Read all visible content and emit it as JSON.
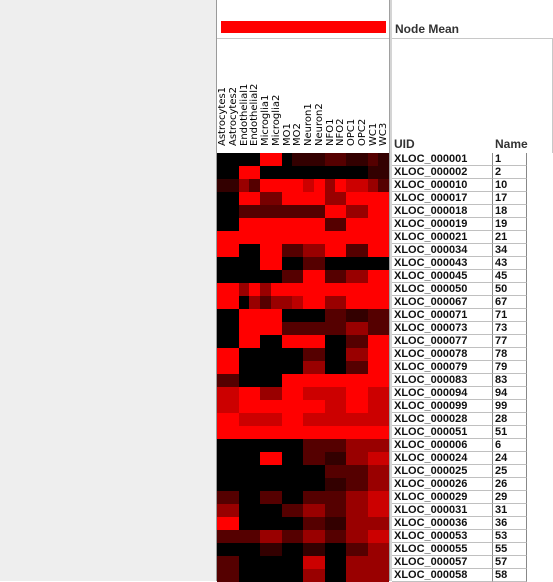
{
  "header": {
    "node_mean_label": "Node Mean",
    "uid_header": "UID",
    "name_header": "Name",
    "mean_bar_color": "#ff0000"
  },
  "columns": [
    "Astrocytes1",
    "Astrocytes2",
    "Endothelial1",
    "Endothelial2",
    "Microglia1",
    "Microglia2",
    "MO1",
    "MO2",
    "Neuron1",
    "Neuron2",
    "NFO1",
    "NFO2",
    "OPC1",
    "OPC2",
    "WC1",
    "WC3"
  ],
  "rows": [
    {
      "uid": "XLOC_000001",
      "name": "1"
    },
    {
      "uid": "XLOC_000002",
      "name": "2"
    },
    {
      "uid": "XLOC_000010",
      "name": "10"
    },
    {
      "uid": "XLOC_000017",
      "name": "17"
    },
    {
      "uid": "XLOC_000018",
      "name": "18"
    },
    {
      "uid": "XLOC_000019",
      "name": "19"
    },
    {
      "uid": "XLOC_000021",
      "name": "21"
    },
    {
      "uid": "XLOC_000034",
      "name": "34"
    },
    {
      "uid": "XLOC_000043",
      "name": "43"
    },
    {
      "uid": "XLOC_000045",
      "name": "45"
    },
    {
      "uid": "XLOC_000050",
      "name": "50"
    },
    {
      "uid": "XLOC_000067",
      "name": "67"
    },
    {
      "uid": "XLOC_000071",
      "name": "71"
    },
    {
      "uid": "XLOC_000073",
      "name": "73"
    },
    {
      "uid": "XLOC_000077",
      "name": "77"
    },
    {
      "uid": "XLOC_000078",
      "name": "78"
    },
    {
      "uid": "XLOC_000079",
      "name": "79"
    },
    {
      "uid": "XLOC_000083",
      "name": "83"
    },
    {
      "uid": "XLOC_000094",
      "name": "94"
    },
    {
      "uid": "XLOC_000099",
      "name": "99"
    },
    {
      "uid": "XLOC_000028",
      "name": "28"
    },
    {
      "uid": "XLOC_000051",
      "name": "51"
    },
    {
      "uid": "XLOC_000006",
      "name": "6"
    },
    {
      "uid": "XLOC_000024",
      "name": "24"
    },
    {
      "uid": "XLOC_000025",
      "name": "25"
    },
    {
      "uid": "XLOC_000026",
      "name": "26"
    },
    {
      "uid": "XLOC_000029",
      "name": "29"
    },
    {
      "uid": "XLOC_000031",
      "name": "31"
    },
    {
      "uid": "XLOC_000036",
      "name": "36"
    },
    {
      "uid": "XLOC_000053",
      "name": "53"
    },
    {
      "uid": "XLOC_000055",
      "name": "55"
    },
    {
      "uid": "XLOC_000057",
      "name": "57"
    },
    {
      "uid": "XLOC_000058",
      "name": "58"
    }
  ],
  "heatmap_levels": [
    [
      0,
      0,
      0,
      0,
      9,
      9,
      0,
      1,
      1,
      1,
      2,
      2,
      1,
      1,
      2,
      1
    ],
    [
      0,
      0,
      9,
      9,
      0,
      0,
      0,
      0,
      0,
      0,
      0,
      0,
      0,
      0,
      1,
      1
    ],
    [
      1,
      1,
      4,
      2,
      9,
      9,
      9,
      9,
      6,
      9,
      4,
      9,
      6,
      6,
      4,
      2
    ],
    [
      0,
      0,
      9,
      9,
      3,
      3,
      9,
      9,
      9,
      9,
      4,
      4,
      9,
      9,
      9,
      9
    ],
    [
      0,
      0,
      2,
      2,
      2,
      2,
      2,
      2,
      2,
      2,
      9,
      9,
      4,
      4,
      9,
      9
    ],
    [
      0,
      0,
      9,
      9,
      9,
      9,
      9,
      9,
      9,
      9,
      2,
      2,
      9,
      9,
      9,
      9
    ],
    [
      9,
      9,
      9,
      9,
      9,
      9,
      9,
      9,
      9,
      9,
      9,
      9,
      9,
      9,
      9,
      9
    ],
    [
      9,
      9,
      0,
      0,
      9,
      9,
      2,
      2,
      4,
      4,
      9,
      9,
      2,
      2,
      9,
      9
    ],
    [
      0,
      0,
      0,
      0,
      9,
      9,
      0,
      0,
      2,
      2,
      0,
      0,
      0,
      0,
      0,
      0
    ],
    [
      0,
      0,
      0,
      0,
      0,
      0,
      2,
      2,
      9,
      9,
      2,
      2,
      4,
      4,
      9,
      9
    ],
    [
      9,
      9,
      4,
      9,
      4,
      9,
      9,
      9,
      9,
      9,
      9,
      9,
      9,
      9,
      9,
      9
    ],
    [
      9,
      9,
      0,
      4,
      2,
      4,
      4,
      5,
      9,
      9,
      4,
      4,
      9,
      9,
      9,
      9
    ],
    [
      0,
      0,
      9,
      9,
      9,
      9,
      0,
      0,
      0,
      0,
      2,
      2,
      1,
      1,
      2,
      2
    ],
    [
      0,
      0,
      9,
      9,
      9,
      9,
      2,
      2,
      2,
      2,
      2,
      2,
      4,
      4,
      2,
      2
    ],
    [
      0,
      0,
      9,
      9,
      0,
      0,
      9,
      9,
      9,
      9,
      0,
      0,
      2,
      2,
      9,
      9
    ],
    [
      9,
      9,
      0,
      0,
      0,
      0,
      0,
      0,
      2,
      2,
      0,
      0,
      4,
      4,
      9,
      9
    ],
    [
      9,
      9,
      0,
      0,
      0,
      0,
      0,
      0,
      4,
      4,
      0,
      0,
      2,
      2,
      9,
      9
    ],
    [
      2,
      2,
      0,
      0,
      0,
      0,
      9,
      9,
      9,
      9,
      9,
      9,
      9,
      9,
      9,
      9
    ],
    [
      6,
      6,
      9,
      9,
      4,
      4,
      9,
      9,
      6,
      6,
      6,
      6,
      9,
      9,
      6,
      6
    ],
    [
      6,
      6,
      9,
      9,
      9,
      9,
      9,
      9,
      9,
      9,
      6,
      6,
      9,
      9,
      6,
      6
    ],
    [
      9,
      9,
      6,
      6,
      6,
      6,
      9,
      9,
      6,
      6,
      6,
      6,
      6,
      6,
      6,
      6
    ],
    [
      9,
      9,
      9,
      9,
      9,
      9,
      9,
      9,
      9,
      9,
      9,
      9,
      9,
      9,
      9,
      9
    ],
    [
      0,
      0,
      0,
      0,
      0,
      0,
      0,
      0,
      2,
      2,
      2,
      2,
      4,
      4,
      4,
      4
    ],
    [
      0,
      0,
      0,
      0,
      9,
      9,
      0,
      0,
      2,
      2,
      1,
      1,
      4,
      4,
      6,
      6
    ],
    [
      0,
      0,
      0,
      0,
      0,
      0,
      0,
      0,
      0,
      0,
      2,
      2,
      2,
      2,
      4,
      4
    ],
    [
      0,
      0,
      0,
      0,
      0,
      0,
      0,
      0,
      0,
      0,
      1,
      1,
      2,
      2,
      4,
      4
    ],
    [
      2,
      2,
      0,
      0,
      2,
      2,
      0,
      0,
      2,
      2,
      2,
      2,
      4,
      4,
      6,
      6
    ],
    [
      4,
      4,
      0,
      0,
      0,
      0,
      2,
      2,
      4,
      4,
      2,
      2,
      4,
      4,
      6,
      6
    ],
    [
      9,
      9,
      0,
      0,
      0,
      0,
      0,
      0,
      2,
      2,
      1,
      1,
      4,
      4,
      4,
      4
    ],
    [
      2,
      2,
      2,
      2,
      4,
      4,
      2,
      2,
      4,
      4,
      2,
      2,
      4,
      4,
      6,
      6
    ],
    [
      0,
      0,
      0,
      0,
      1,
      1,
      0,
      0,
      1,
      1,
      0,
      0,
      2,
      2,
      4,
      4
    ],
    [
      2,
      2,
      0,
      0,
      0,
      0,
      0,
      0,
      6,
      6,
      0,
      0,
      4,
      4,
      4,
      4
    ],
    [
      2,
      2,
      0,
      0,
      0,
      0,
      0,
      0,
      4,
      4,
      0,
      0,
      4,
      4,
      4,
      4
    ]
  ]
}
